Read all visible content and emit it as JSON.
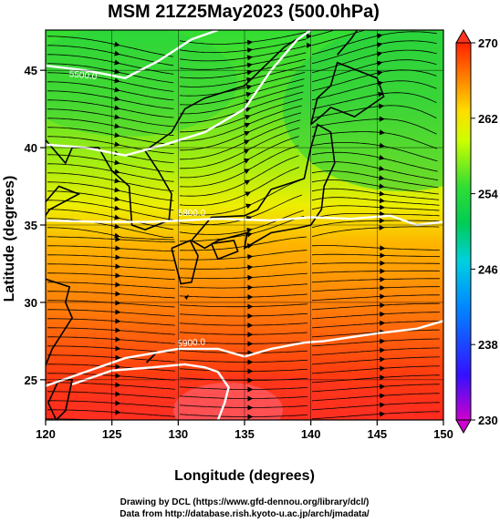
{
  "title": "MSM 21Z25May2023 (500.0hPa)",
  "credits": {
    "line1": "Drawing by DCL (https://www.gfd-dennou.org/library/dcl/)",
    "line2": "Data from http://database.rish.kyoto-u.ac.jp/arch/jmadata/"
  },
  "map": {
    "xlabel": "Longitude (degrees)",
    "ylabel": "Latitude  (degrees)",
    "xlim": [
      120,
      150
    ],
    "ylim": [
      22.4,
      47.6
    ],
    "xticks": [
      "120",
      "125",
      "130",
      "135",
      "140",
      "145",
      "150"
    ],
    "yticks": [
      "25",
      "30",
      "35",
      "40",
      "45"
    ],
    "contour_labels": [
      "5500.0",
      "5800.0",
      "5900.0"
    ],
    "contour_color": "#ffffff",
    "coastline_color": "#000000"
  },
  "colorbar": {
    "ticks": [
      "230",
      "238",
      "246",
      "254",
      "262",
      "270"
    ],
    "range": [
      230,
      270
    ],
    "stops": [
      "#cc00cc",
      "#1a1aff",
      "#00c8ff",
      "#00cc66",
      "#33dd33",
      "#ccff00",
      "#ffdd00",
      "#ff8800",
      "#ff2200"
    ]
  }
}
